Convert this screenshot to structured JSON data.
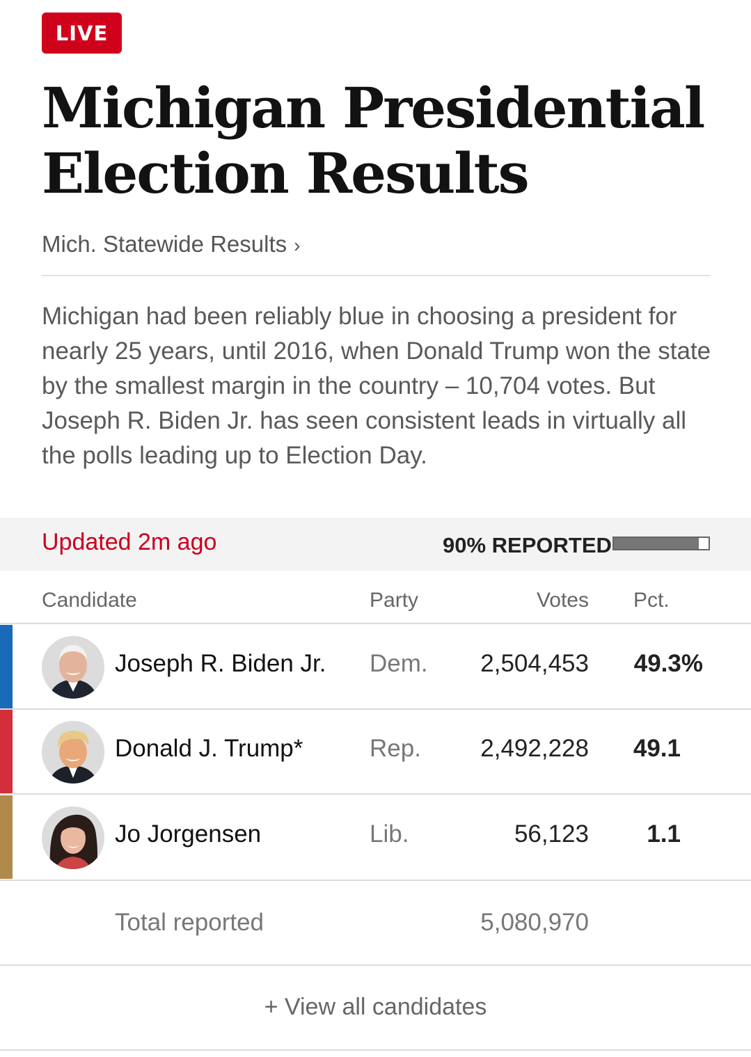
{
  "badge": {
    "label": "LIVE",
    "color": "#d0021b"
  },
  "headline": {
    "line1": "Michigan Presidential",
    "line2": "Election Results"
  },
  "statewide_link": {
    "label": "Mich. Statewide Results",
    "chevron": "›"
  },
  "description": "Michigan had been reliably blue in choosing a president for nearly 25 years, until 2016, when Donald Trump won the state by the smallest margin in the country – 10,704 votes. But Joseph R. Biden Jr. has seen consistent leads in virtually all the polls leading up to Election Day.",
  "status": {
    "updated": "Updated 2m ago",
    "reported": "90% REPORTED",
    "reported_fraction": 0.9
  },
  "table": {
    "headers": {
      "candidate": "Candidate",
      "party": "Party",
      "votes": "Votes",
      "pct": "Pct."
    },
    "rows": [
      {
        "name": "Joseph R. Biden Jr.",
        "party": "Dem.",
        "votes": "2,504,453",
        "pct": "49.3%",
        "color": "#1a6aba",
        "photo": "biden-photo"
      },
      {
        "name": "Donald J. Trump*",
        "party": "Rep.",
        "votes": "2,492,228",
        "pct": "49.1",
        "color": "#d32f3a",
        "photo": "trump-photo"
      },
      {
        "name": "Jo Jorgensen",
        "party": "Lib.",
        "votes": "56,123",
        "pct": "1.1",
        "color": "#b08a4a",
        "photo": "jorgensen-photo"
      }
    ],
    "total": {
      "label": "Total reported",
      "votes": "5,080,970"
    }
  },
  "view_all": "+ View all candidates"
}
